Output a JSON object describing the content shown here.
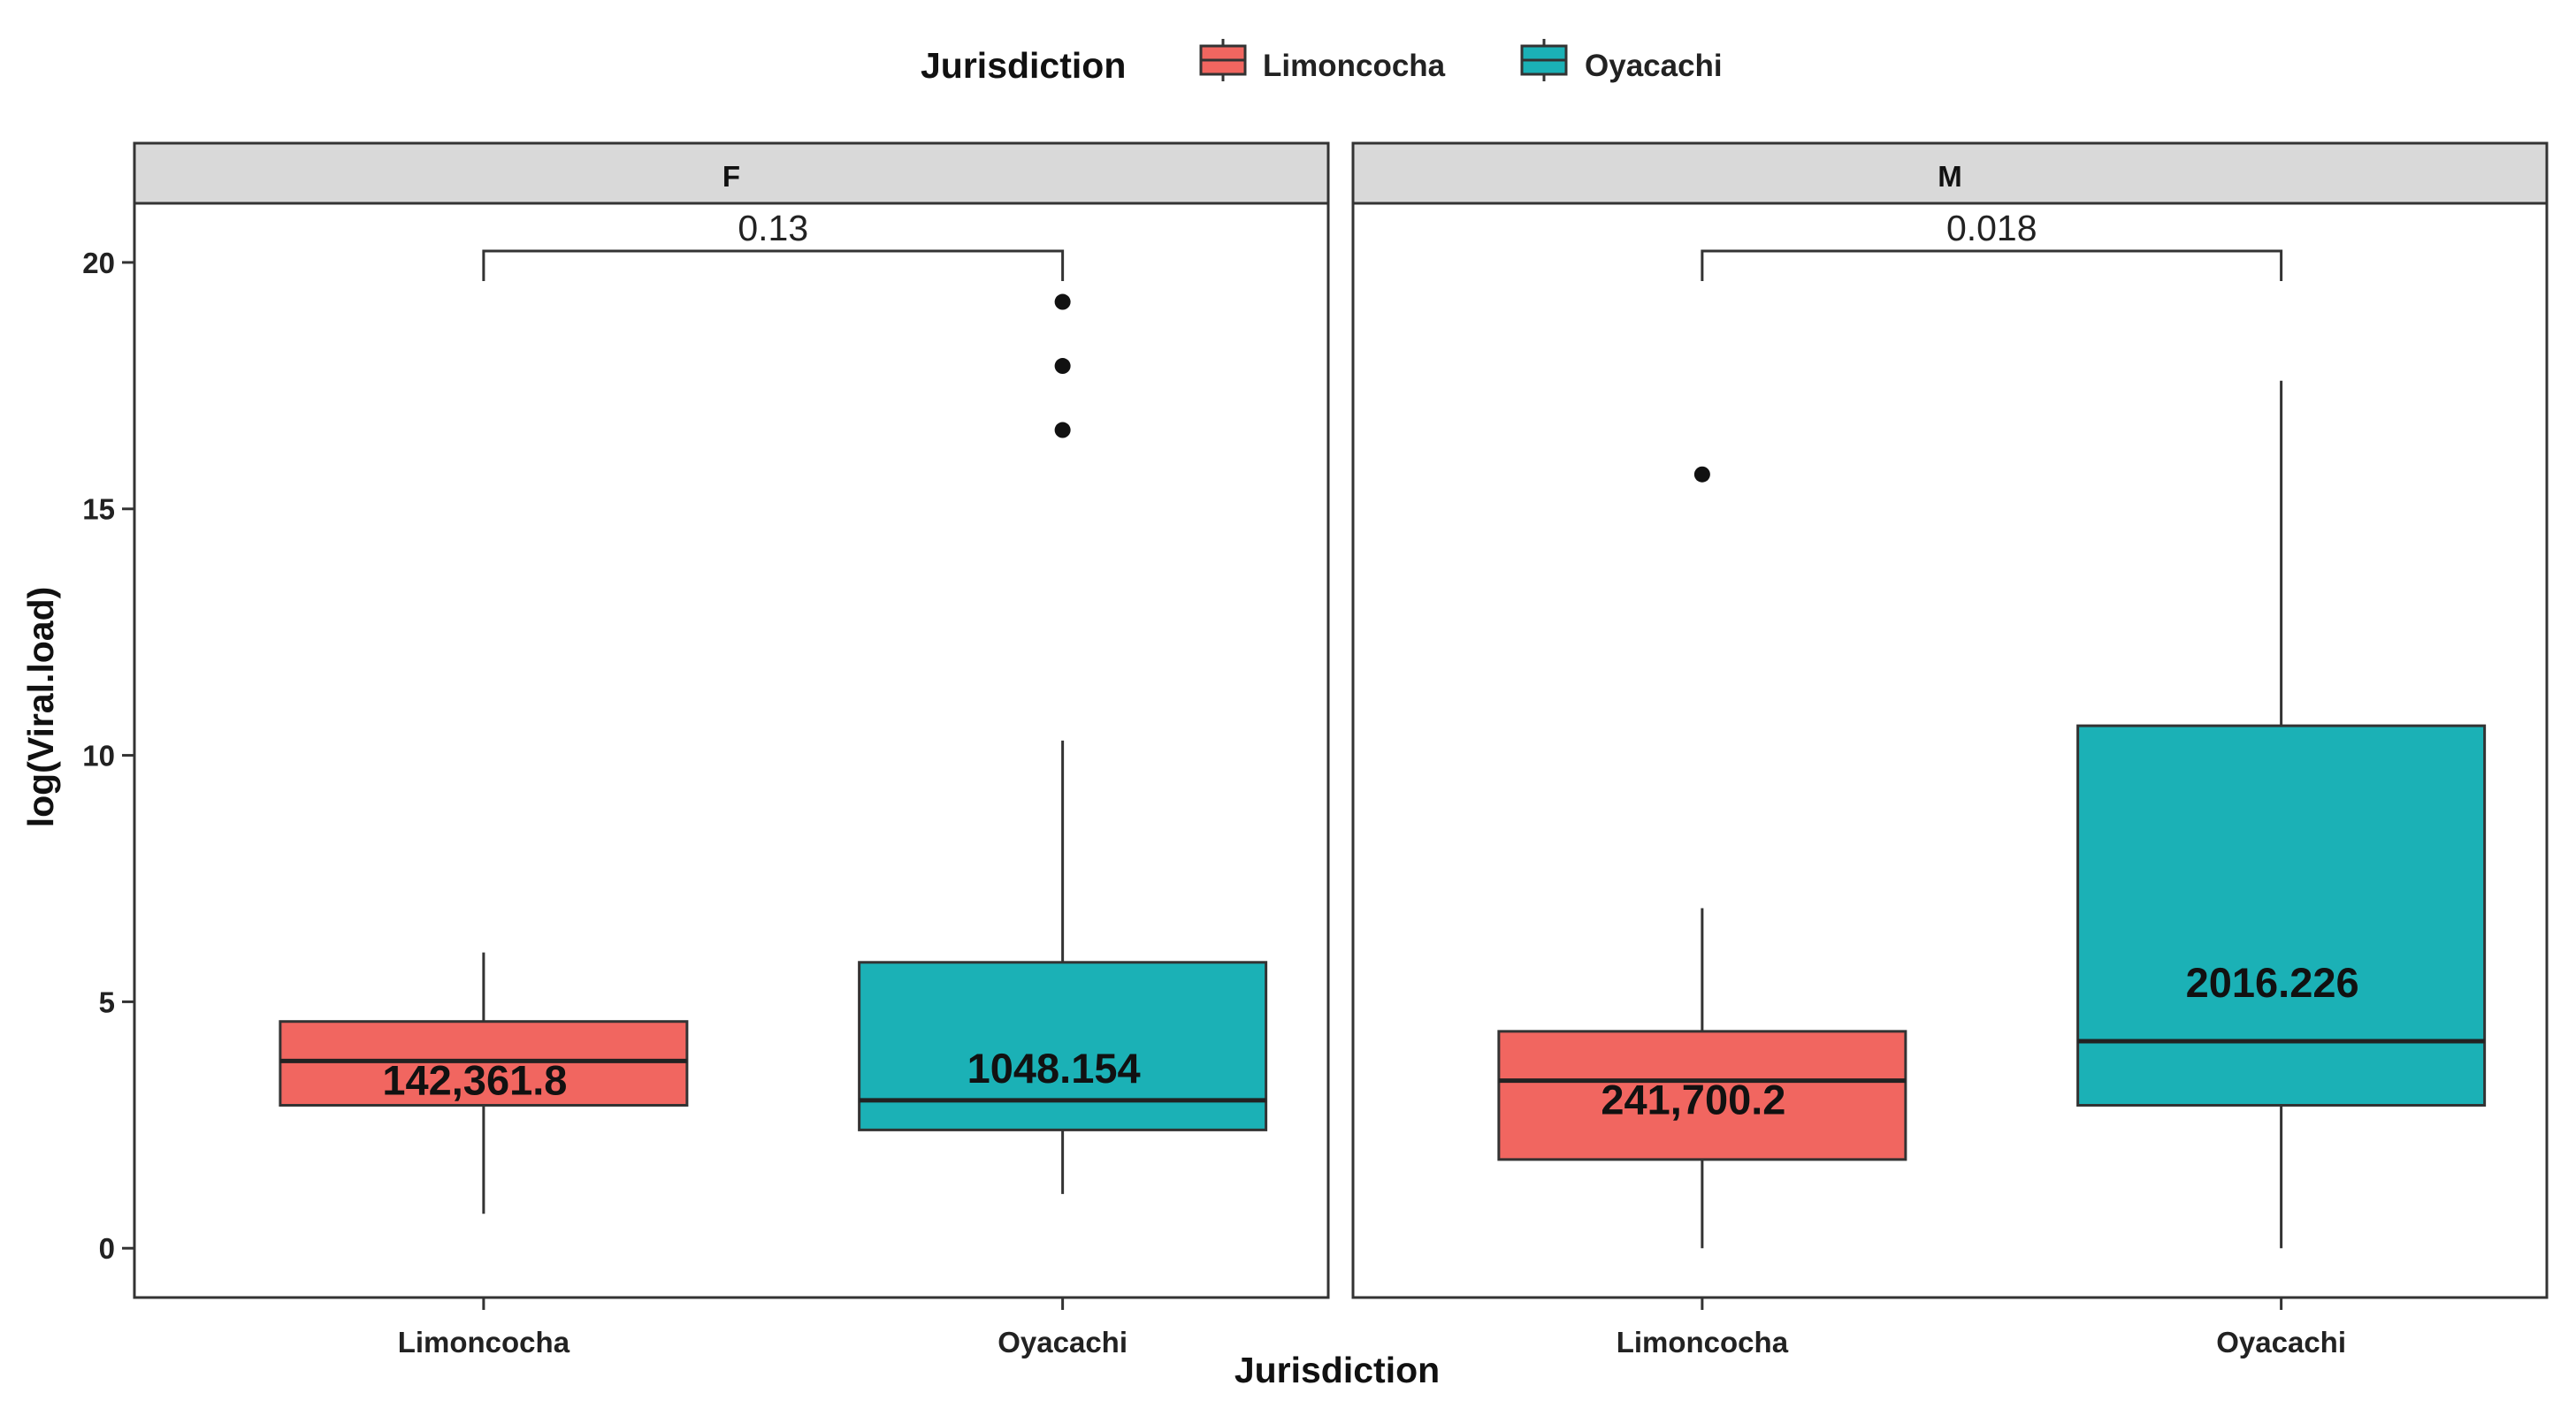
{
  "legend": {
    "title": "Jurisdiction",
    "items": [
      {
        "label": "Limoncocha",
        "color": "#F16660"
      },
      {
        "label": "Oyacachi",
        "color": "#1BB1B6"
      }
    ]
  },
  "chart_data": {
    "type": "box",
    "xlabel": "Jurisdiction",
    "ylabel": "log(Viral.load)",
    "ylim": [
      -1,
      21.2
    ],
    "yticks": [
      0,
      5,
      10,
      15,
      20
    ],
    "categories": [
      "Limoncocha",
      "Oyacachi"
    ],
    "panels": [
      {
        "facet": "F",
        "p_value": "0.13",
        "boxes": [
          {
            "group": "Limoncocha",
            "lower_whisker": 0.7,
            "q1": 2.9,
            "median": 3.8,
            "q3": 4.6,
            "upper_whisker": 6.0,
            "outliers": [],
            "label": "142,361.8"
          },
          {
            "group": "Oyacachi",
            "lower_whisker": 1.1,
            "q1": 2.4,
            "median": 3.0,
            "q3": 5.8,
            "upper_whisker": 10.3,
            "outliers": [
              16.6,
              17.9,
              19.2
            ],
            "label": "1048.154"
          }
        ]
      },
      {
        "facet": "M",
        "p_value": "0.018",
        "boxes": [
          {
            "group": "Limoncocha",
            "lower_whisker": 0.0,
            "q1": 1.8,
            "median": 3.4,
            "q3": 4.4,
            "upper_whisker": 6.9,
            "outliers": [
              15.7
            ],
            "label": "241,700.2"
          },
          {
            "group": "Oyacachi",
            "lower_whisker": 0.0,
            "q1": 2.9,
            "median": 4.2,
            "q3": 10.6,
            "upper_whisker": 17.6,
            "outliers": [],
            "label": "2016.226"
          }
        ]
      }
    ]
  }
}
